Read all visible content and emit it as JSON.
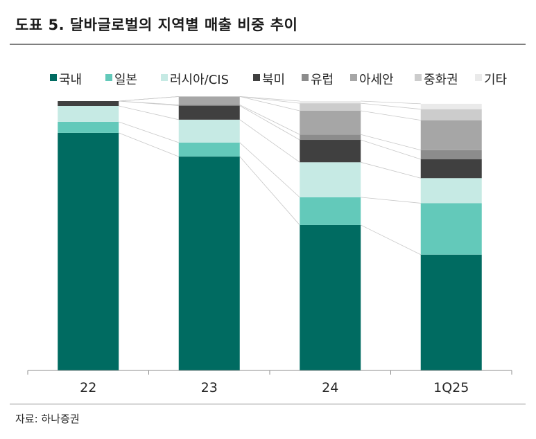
{
  "title": "도표 5. 달바글로벌의 지역별 매출 비중 추이",
  "source": "자료: 하나증권",
  "chart_data": {
    "type": "bar",
    "stacked": true,
    "percent": true,
    "categories": [
      "22",
      "23",
      "24",
      "1Q25"
    ],
    "ylim": [
      0,
      100
    ],
    "grid": false,
    "legend_position": "top",
    "connector_lines": true,
    "series": [
      {
        "name": "국내",
        "color": "#006B61",
        "values": [
          88.2,
          79.4,
          54.0,
          43.0
        ]
      },
      {
        "name": "일본",
        "color": "#63C9BA",
        "values": [
          4.1,
          5.2,
          10.3,
          19.1
        ]
      },
      {
        "name": "러시아/CIS",
        "color": "#C6EAE4",
        "values": [
          5.9,
          8.5,
          13.0,
          9.3
        ]
      },
      {
        "name": "북미",
        "color": "#404040",
        "values": [
          1.8,
          5.2,
          8.3,
          7.0
        ]
      },
      {
        "name": "유럽",
        "color": "#8C8C8C",
        "values": [
          0.0,
          0.3,
          2.0,
          3.4
        ]
      },
      {
        "name": "아세안",
        "color": "#A6A6A6",
        "values": [
          0.0,
          3.1,
          8.8,
          11.1
        ]
      },
      {
        "name": "중화권",
        "color": "#CCCCCC",
        "values": [
          0.0,
          0.0,
          2.8,
          4.1
        ]
      },
      {
        "name": "기타",
        "color": "#EAEAEA",
        "values": [
          0.0,
          0.0,
          0.8,
          2.0
        ]
      }
    ]
  }
}
